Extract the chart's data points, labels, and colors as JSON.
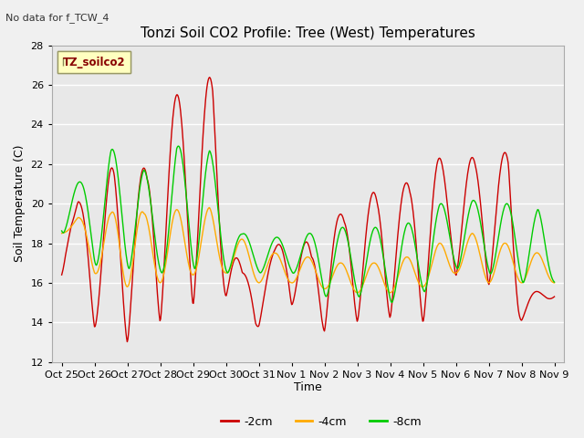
{
  "title": "Tonzi Soil CO2 Profile: Tree (West) Temperatures",
  "no_data_label": "No data for f_TCW_4",
  "ylabel": "Soil Temperature (C)",
  "xlabel": "Time",
  "legend_label": "TZ_soilco2",
  "ylim": [
    12,
    28
  ],
  "yticks": [
    12,
    14,
    16,
    18,
    20,
    22,
    24,
    26,
    28
  ],
  "series_labels": [
    "-2cm",
    "-4cm",
    "-8cm"
  ],
  "series_colors": [
    "#cc0000",
    "#ffaa00",
    "#00cc00"
  ],
  "xtick_labels": [
    "Oct 25",
    "Oct 26",
    "Oct 27",
    "Oct 28",
    "Oct 29",
    "Oct 30",
    "Oct 31",
    "Nov 1",
    "Nov 2",
    "Nov 3",
    "Nov 4",
    "Nov 5",
    "Nov 6",
    "Nov 7",
    "Nov 8",
    "Nov 9"
  ],
  "fig_bg_color": "#f0f0f0",
  "plot_bg_color": "#e8e8e8",
  "grid_color": "#ffffff",
  "figsize": [
    6.4,
    4.8
  ],
  "dpi": 100
}
